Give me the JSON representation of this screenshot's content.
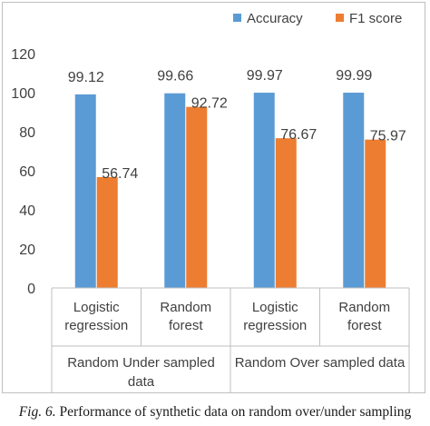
{
  "chart_data": {
    "type": "bar",
    "title": "",
    "xlabel": "",
    "ylabel": "",
    "ylim": [
      0,
      120
    ],
    "yticks": [
      0,
      20,
      40,
      60,
      80,
      100,
      120
    ],
    "categories": [
      "Logistic regression",
      "Random forest",
      "Logistic regression",
      "Random forest"
    ],
    "category_lines": [
      [
        "Logistic",
        "regression"
      ],
      [
        "Random",
        "forest"
      ],
      [
        "Logistic",
        "regression"
      ],
      [
        "Random",
        "forest"
      ]
    ],
    "groups": [
      {
        "lines": [
          "Random Under sampled",
          "data"
        ],
        "span": [
          0,
          1
        ]
      },
      {
        "lines": [
          "Random Over sampled data"
        ],
        "span": [
          2,
          3
        ]
      }
    ],
    "series": [
      {
        "name": "Accuracy",
        "color": "#5b9bd5",
        "values": [
          99.12,
          99.66,
          99.97,
          99.99
        ],
        "labels": [
          "99.12",
          "99.66",
          "99.97",
          "99.99"
        ]
      },
      {
        "name": "F1 score",
        "color": "#ed7d31",
        "values": [
          56.74,
          92.72,
          76.67,
          75.97
        ],
        "labels": [
          "56.74",
          "92.72",
          "76.67",
          "75.97"
        ]
      }
    ],
    "legend": "top-right",
    "grid": false
  },
  "caption": {
    "prefix": "Fig. 6.",
    "text": " Performance of synthetic data on random over/under sampling"
  }
}
